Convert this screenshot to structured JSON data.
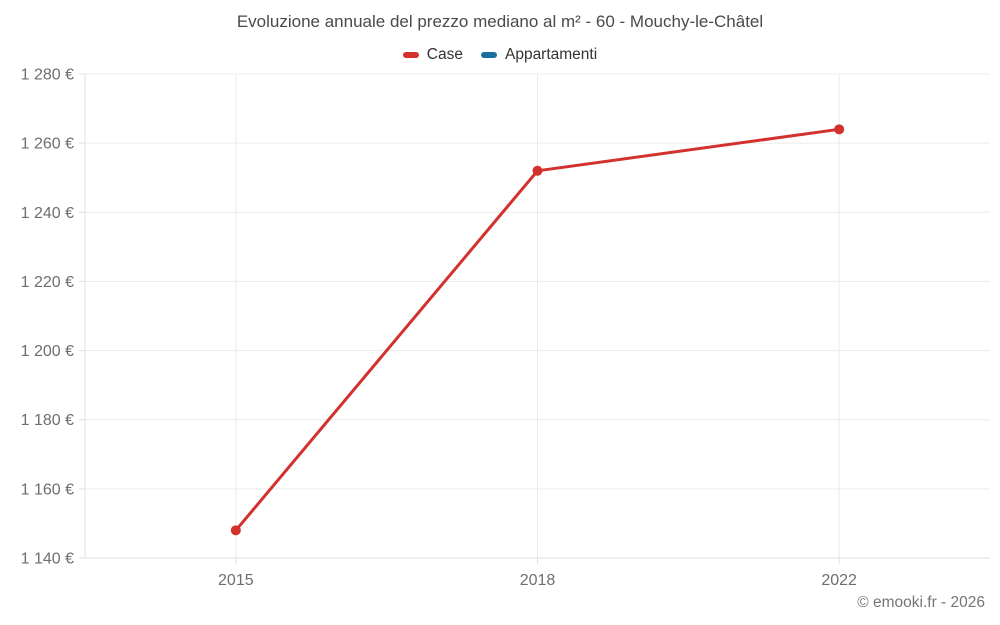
{
  "chart": {
    "title": "Evoluzione annuale del prezzo mediano al m² - 60 - Mouchy-le-Châtel",
    "legend": [
      {
        "label": "Case",
        "color": "#d3312d"
      },
      {
        "label": "Appartamenti",
        "color": "#1a6f9e"
      }
    ],
    "copyright": "© emooki.fr - 2026"
  },
  "chart_data": {
    "type": "line",
    "title": "Evoluzione annuale del prezzo mediano al m² - 60 - Mouchy-le-Châtel",
    "categories": [
      "2015",
      "2018",
      "2022"
    ],
    "series": [
      {
        "name": "Case",
        "color": "#d3312d",
        "values": [
          1148,
          1252,
          1264
        ]
      },
      {
        "name": "Appartamenti",
        "color": "#1a6f9e",
        "values": []
      }
    ],
    "xlabel": "",
    "ylabel": "",
    "ylim": [
      1140,
      1280
    ],
    "ytick_step": 20,
    "ytick_suffix": " €",
    "grid": true,
    "legend_position": "top",
    "colors": {
      "grid_line": "#ececec",
      "axis_line": "#e0e0e0",
      "tick_label": "#6e6e6e"
    }
  }
}
